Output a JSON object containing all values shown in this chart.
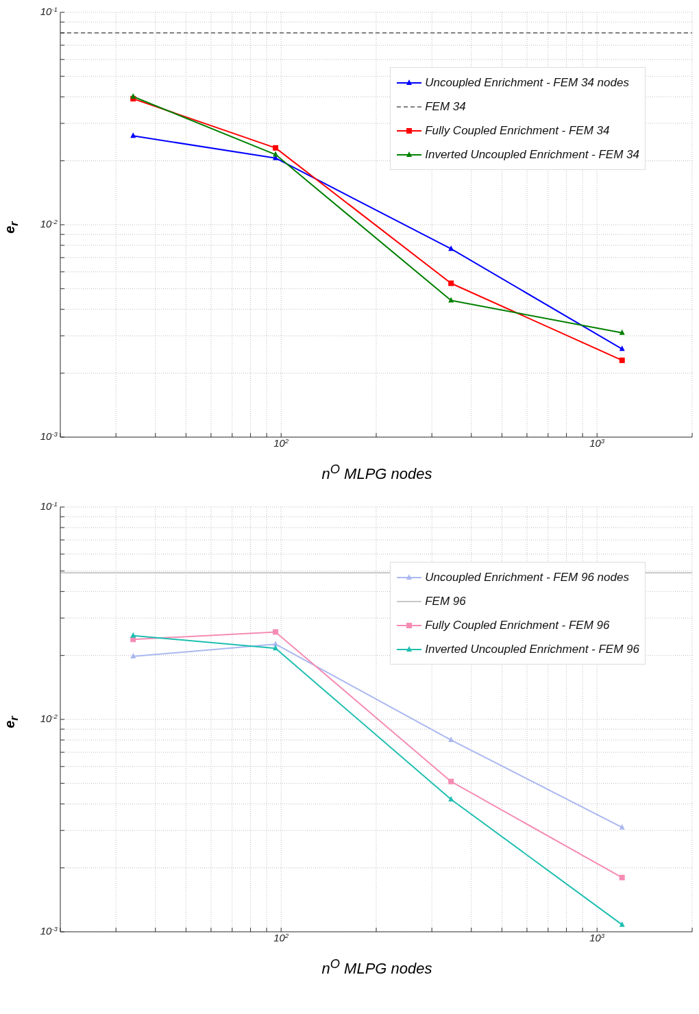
{
  "chart_data": [
    {
      "type": "line",
      "xlabel": "n$^{O}$ MLPG nodes",
      "ylabel": "e$_{r}$",
      "log": "xy",
      "grid": true,
      "legend": "top right",
      "xlim": [
        20,
        2000
      ],
      "ylim": [
        0.001,
        0.1
      ],
      "xticks": [
        {
          "value": 20,
          "label": null
        },
        {
          "value": 30,
          "label": null
        },
        {
          "value": 40,
          "label": null
        },
        {
          "value": 50,
          "label": null
        },
        {
          "value": 60,
          "label": null
        },
        {
          "value": 70,
          "label": null
        },
        {
          "value": 80,
          "label": null
        },
        {
          "value": 90,
          "label": null
        },
        {
          "value": 100,
          "label": "10$^{2}$"
        },
        {
          "value": 200,
          "label": null
        },
        {
          "value": 300,
          "label": null
        },
        {
          "value": 400,
          "label": null
        },
        {
          "value": 500,
          "label": null
        },
        {
          "value": 600,
          "label": null
        },
        {
          "value": 700,
          "label": null
        },
        {
          "value": 800,
          "label": null
        },
        {
          "value": 900,
          "label": null
        },
        {
          "value": 1000,
          "label": "10$^{3}$"
        },
        {
          "value": 2000,
          "label": null
        }
      ],
      "yticks": [
        {
          "value": 0.001,
          "label": "10$^{-3}$"
        },
        {
          "value": 0.002,
          "label": null
        },
        {
          "value": 0.003,
          "label": null
        },
        {
          "value": 0.004,
          "label": null
        },
        {
          "value": 0.005,
          "label": null
        },
        {
          "value": 0.006,
          "label": null
        },
        {
          "value": 0.007,
          "label": null
        },
        {
          "value": 0.008,
          "label": null
        },
        {
          "value": 0.009,
          "label": null
        },
        {
          "value": 0.01,
          "label": "10$^{-2}$"
        },
        {
          "value": 0.02,
          "label": null
        },
        {
          "value": 0.03,
          "label": null
        },
        {
          "value": 0.04,
          "label": null
        },
        {
          "value": 0.05,
          "label": null
        },
        {
          "value": 0.06,
          "label": null
        },
        {
          "value": 0.07,
          "label": null
        },
        {
          "value": 0.08,
          "label": null
        },
        {
          "value": 0.09,
          "label": null
        },
        {
          "value": 0.1,
          "label": "10$^{-1}$"
        }
      ],
      "series": [
        {
          "name": "Uncoupled Enrichment - FEM 34 nodes",
          "color": "#0000ff",
          "marker": "triangle",
          "line_style": "solid",
          "x": [
            34,
            96,
            345,
            1200
          ],
          "values": [
            0.0262,
            0.0206,
            0.0077,
            0.0026
          ]
        },
        {
          "name": "FEM 34",
          "color": "#808080",
          "marker": "none",
          "line_style": "dashed",
          "x": [
            20,
            2000
          ],
          "values": [
            0.08,
            0.08
          ]
        },
        {
          "name": "Fully Coupled Enrichment - FEM 34",
          "color": "#ff0000",
          "marker": "square",
          "line_style": "solid",
          "x": [
            34,
            96,
            345,
            1200
          ],
          "values": [
            0.0392,
            0.023,
            0.0053,
            0.0023
          ]
        },
        {
          "name": "Inverted Uncoupled Enrichment - FEM 34",
          "color": "#008000",
          "marker": "triangle",
          "line_style": "solid",
          "x": [
            34,
            96,
            345,
            1200
          ],
          "values": [
            0.0401,
            0.0214,
            0.0044,
            0.0031
          ]
        }
      ]
    },
    {
      "type": "line",
      "xlabel": "n$^{O}$ MLPG nodes",
      "ylabel": "e$_{r}$",
      "log": "xy",
      "grid": true,
      "legend": "top right",
      "xlim": [
        20,
        2000
      ],
      "ylim": [
        0.001,
        0.1
      ],
      "xticks": [
        {
          "value": 20,
          "label": null
        },
        {
          "value": 30,
          "label": null
        },
        {
          "value": 40,
          "label": null
        },
        {
          "value": 50,
          "label": null
        },
        {
          "value": 60,
          "label": null
        },
        {
          "value": 70,
          "label": null
        },
        {
          "value": 80,
          "label": null
        },
        {
          "value": 90,
          "label": null
        },
        {
          "value": 100,
          "label": "10$^{2}$"
        },
        {
          "value": 200,
          "label": null
        },
        {
          "value": 300,
          "label": null
        },
        {
          "value": 400,
          "label": null
        },
        {
          "value": 500,
          "label": null
        },
        {
          "value": 600,
          "label": null
        },
        {
          "value": 700,
          "label": null
        },
        {
          "value": 800,
          "label": null
        },
        {
          "value": 900,
          "label": null
        },
        {
          "value": 1000,
          "label": "10$^{3}$"
        },
        {
          "value": 2000,
          "label": null
        }
      ],
      "yticks": [
        {
          "value": 0.001,
          "label": "10$^{-3}$"
        },
        {
          "value": 0.002,
          "label": null
        },
        {
          "value": 0.003,
          "label": null
        },
        {
          "value": 0.004,
          "label": null
        },
        {
          "value": 0.005,
          "label": null
        },
        {
          "value": 0.006,
          "label": null
        },
        {
          "value": 0.007,
          "label": null
        },
        {
          "value": 0.008,
          "label": null
        },
        {
          "value": 0.009,
          "label": null
        },
        {
          "value": 0.01,
          "label": "10$^{-2}$"
        },
        {
          "value": 0.02,
          "label": null
        },
        {
          "value": 0.03,
          "label": null
        },
        {
          "value": 0.04,
          "label": null
        },
        {
          "value": 0.05,
          "label": null
        },
        {
          "value": 0.06,
          "label": null
        },
        {
          "value": 0.07,
          "label": null
        },
        {
          "value": 0.08,
          "label": null
        },
        {
          "value": 0.09,
          "label": null
        },
        {
          "value": 0.1,
          "label": "10$^{-1}$"
        }
      ],
      "series": [
        {
          "name": "Uncoupled Enrichment - FEM 96 nodes",
          "color": "#aab8f0",
          "marker": "triangle",
          "line_style": "solid",
          "x": [
            34,
            96,
            345,
            1200
          ],
          "values": [
            0.0198,
            0.0226,
            0.008,
            0.0031
          ]
        },
        {
          "name": "FEM 96",
          "color": "#c8c8c8",
          "marker": "none",
          "line_style": "solid",
          "x": [
            20,
            2000
          ],
          "values": [
            0.049,
            0.049
          ]
        },
        {
          "name": "Fully Coupled Enrichment - FEM 96",
          "color": "#f58cb4",
          "marker": "square",
          "line_style": "solid",
          "x": [
            34,
            96,
            345,
            1200
          ],
          "values": [
            0.0238,
            0.0258,
            0.0051,
            0.0018
          ]
        },
        {
          "name": "Inverted Uncoupled Enrichment - FEM 96",
          "color": "#1ebfb0",
          "marker": "triangle",
          "line_style": "solid",
          "x": [
            34,
            96,
            345,
            1200
          ],
          "values": [
            0.0248,
            0.0216,
            0.0042,
            0.00108
          ]
        }
      ]
    }
  ]
}
